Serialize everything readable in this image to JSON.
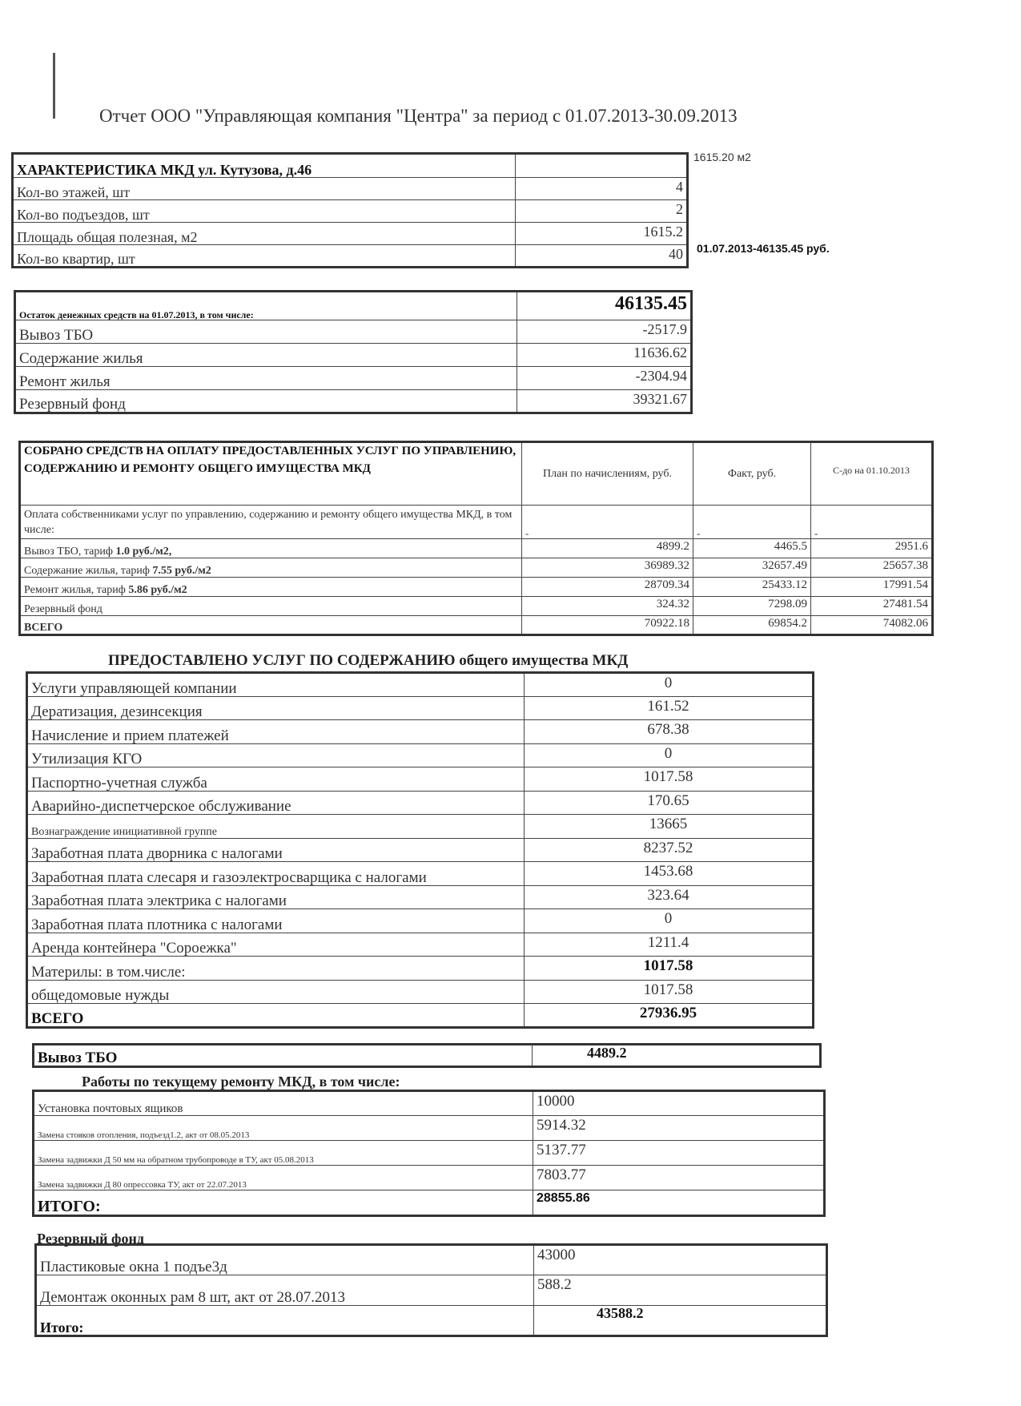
{
  "title": "Отчет ООО \"Управляющая компания \"Центра\" за период с 01.07.2013-30.09.2013",
  "notes": {
    "area": "1615.20 м2",
    "balance": "01.07.2013-46135.45 руб."
  },
  "characteristics": {
    "header": "ХАРАКТЕРИСТИКА МКД  ул. Кутузова, д.46",
    "rows": [
      {
        "label": "Кол-во этажей, шт",
        "value": "4"
      },
      {
        "label": "Кол-во подъездов, шт",
        "value": "2"
      },
      {
        "label": "Площадь общая полезная, м2",
        "value": "1615.2"
      },
      {
        "label": "Кол-во квартир, шт",
        "value": "40"
      }
    ]
  },
  "balance": {
    "header": "Остаток денежных средств на 01.07.2013, в том числе:",
    "total": "46135.45",
    "rows": [
      {
        "label": "Вывоз ТБО",
        "value": "-2517.9"
      },
      {
        "label": "Содержание  жилья",
        "value": "11636.62"
      },
      {
        "label": "Ремонт жилья",
        "value": "-2304.94"
      },
      {
        "label": "Резервный фонд",
        "value": "39321.67"
      }
    ]
  },
  "collected": {
    "header": "СОБРАНО СРЕДСТВ НА ОПЛАТУ ПРЕДОСТАВЛЕННЫХ УСЛУГ ПО УПРАВЛЕНИЮ, СОДЕРЖАНИЮ И РЕМОНТУ ОБЩЕГО ИМУЩЕСТВА МКД",
    "columns": [
      "План по начислениям, руб.",
      "Факт, руб.",
      "С-до на 01.10.2013"
    ],
    "intro": {
      "label": "Оплата собственниками услуг по управлению,  содержанию и ремонту общего имущества МКД, в том числе:",
      "values": [
        "-",
        "-",
        "-"
      ]
    },
    "rows": [
      {
        "label": "Вывоз ТБО, тариф ",
        "bold": "1.0 руб./м2,",
        "values": [
          "4899.2",
          "4465.5",
          "2951.6"
        ]
      },
      {
        "label": "Содержание жилья, тариф ",
        "bold": "7.55 руб./м2",
        "values": [
          "36989.32",
          "32657.49",
          "25657.38"
        ]
      },
      {
        "label": " Ремонт жилья, тариф ",
        "bold": "5.86 руб./м2",
        "values": [
          "28709.34",
          "25433.12",
          "17991.54"
        ]
      },
      {
        "label": "Резервный фонд",
        "bold": "",
        "values": [
          "324.32",
          "7298.09",
          "27481.54"
        ]
      },
      {
        "label": "ВСЕГО",
        "bold": "",
        "values": [
          "70922.18",
          "69854.2",
          "74082.06"
        ]
      }
    ]
  },
  "services": {
    "heading": "ПРЕДОСТАВЛЕНО УСЛУГ ПО СОДЕРЖАНИЮ общего имущества МКД",
    "rows": [
      {
        "label": "Услуги управляющей компании",
        "value": "0"
      },
      {
        "label": "Дератизация, дезинсекция",
        "value": "161.52"
      },
      {
        "label": "Начисление и прием платежей",
        "value": "678.38"
      },
      {
        "label": "Утилизация КГО",
        "value": "0"
      },
      {
        "label": "Паспортно-учетная служба",
        "value": "1017.58"
      },
      {
        "label": "Аварийно-диспетчерское обслуживание",
        "value": "170.65"
      },
      {
        "label": "Вознаграждение инициативной группе",
        "value": "13665"
      },
      {
        "label": "Заработная плата дворника с налогами",
        "value": "8237.52"
      },
      {
        "label": "Заработная плата слесаря и газоэлектросварщика с налогами",
        "value": "1453.68"
      },
      {
        "label": "Заработная плата электрика с налогами",
        "value": "323.64"
      },
      {
        "label": "Заработная плата плотника с налогами",
        "value": "0"
      },
      {
        "label": "Аренда контейнера \"Сороежка\"",
        "value": "1211.4"
      },
      {
        "label": "Материлы: в том.числе:",
        "value": "1017.58"
      },
      {
        "label": "общедомовые нужды",
        "value": "1017.58"
      },
      {
        "label": "ВСЕГО",
        "value": "27936.95"
      }
    ]
  },
  "waste": {
    "label": "Вывоз ТБО",
    "value": "4489.2"
  },
  "repairs": {
    "heading": "Работы по текущему ремонту МКД, в том числе:",
    "rows": [
      {
        "label": "Установка почтовых ящиков",
        "value": "10000"
      },
      {
        "label": "Замена стояков отопления, подъезд1.2, акт от 08.05.2013",
        "value": "5914.32"
      },
      {
        "label": "Замена задвижки Д 50 мм на обратном трубопроводе в ТУ, акт 05.08.2013",
        "value": "5137.77"
      },
      {
        "label": "Замена задвижки Д 80 опрессовка ТУ, акт от 22.07.2013",
        "value": "7803.77"
      }
    ],
    "total": {
      "label": "ИТОГО:",
      "value": "28855.86"
    }
  },
  "reserve": {
    "heading": "Резервный фонд",
    "rows": [
      {
        "label": "Пластиковые окна 1 подъе3д",
        "value": "43000"
      },
      {
        "label": "Демонтаж оконных рам 8 шт, акт от 28.07.2013",
        "value": "588.2"
      }
    ],
    "total": {
      "label": "Итого:",
      "value": "43588.2"
    }
  }
}
